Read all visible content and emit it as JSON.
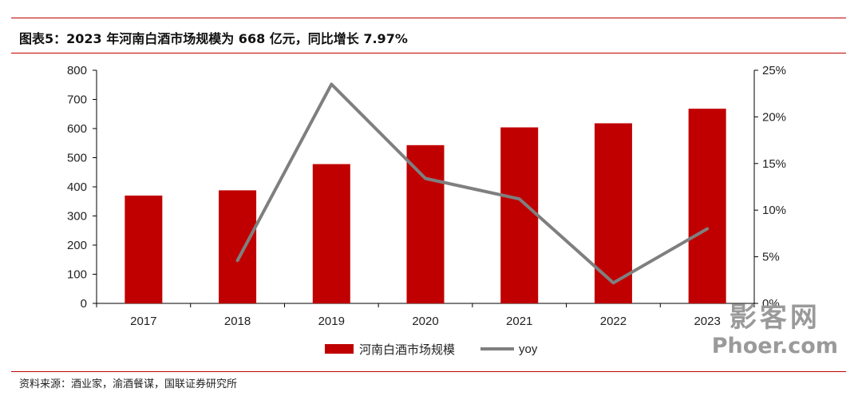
{
  "header": {
    "title": "图表5：2023 年河南白酒市场规模为 668 亿元，同比增长 7.97%"
  },
  "footer": {
    "source": "资料来源：酒业家，渝酒餐谋，国联证券研究所"
  },
  "watermark": {
    "cn": "影客网",
    "en": "Phoer.com"
  },
  "colors": {
    "accent": "#c00000",
    "bar": "#c00000",
    "line": "#7f7f7f"
  },
  "chart_data": {
    "type": "bar",
    "categories": [
      "2017",
      "2018",
      "2019",
      "2020",
      "2021",
      "2022",
      "2023"
    ],
    "series": [
      {
        "name": "河南白酒市场规模",
        "type": "bar",
        "axis": "left",
        "values": [
          370,
          388,
          478,
          543,
          604,
          618,
          668
        ]
      },
      {
        "name": "yoy",
        "type": "line",
        "axis": "right",
        "values": [
          null,
          4.6,
          23.5,
          13.4,
          11.2,
          2.2,
          8.0
        ]
      }
    ],
    "y_left": {
      "ylim": [
        0,
        800
      ],
      "ticks": [
        "0",
        "100",
        "200",
        "300",
        "400",
        "500",
        "600",
        "700",
        "800"
      ]
    },
    "y_right": {
      "ylim": [
        0,
        25
      ],
      "ticks": [
        "0%",
        "5%",
        "10%",
        "15%",
        "20%",
        "25%"
      ]
    },
    "grid": false,
    "legend_position": "bottom"
  }
}
